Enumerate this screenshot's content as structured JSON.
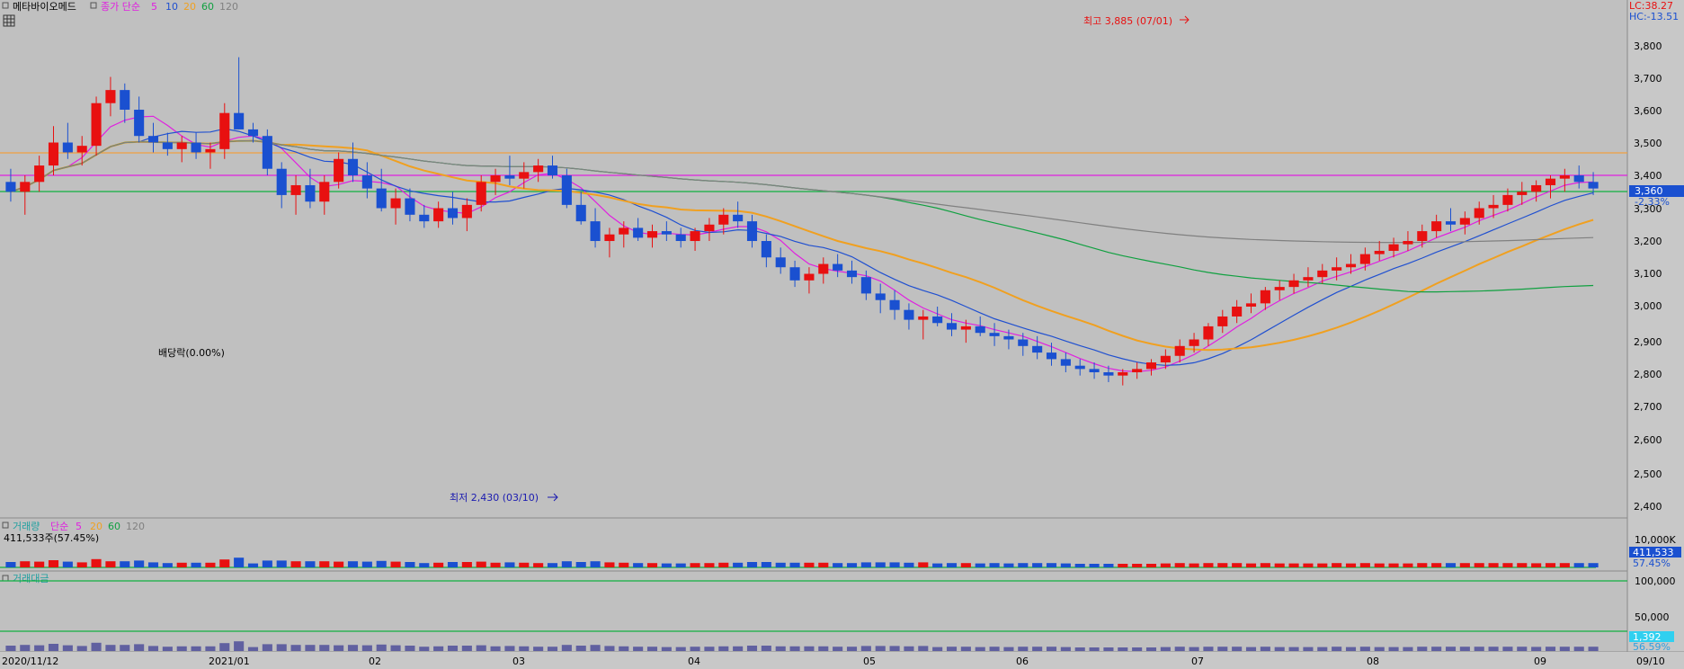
{
  "header": {
    "stock_name": "메타바이오메드",
    "price_ma_label": "종가 단순",
    "ma_periods": [
      "5",
      "10",
      "20",
      "60",
      "120"
    ],
    "ma_colors": [
      "#e020e0",
      "#2050d0",
      "#f0a020",
      "#10a040",
      "#808080"
    ],
    "lc_text": "LC:38.27",
    "hc_text": "HC:-13.51"
  },
  "annotations": {
    "high_label": "최고 3,885 (07/01)",
    "low_label": "최저 2,430 (03/10)",
    "dividend_label": "배당락(0.00%)"
  },
  "price_panel": {
    "current_price": "3,360",
    "change_pct": "-2.33%",
    "y_ticks": [
      "3,800",
      "3,700",
      "3,600",
      "3,500",
      "3,400",
      "3,300",
      "3,200",
      "3,100",
      "3,000",
      "2,900",
      "2,800",
      "2,700",
      "2,600",
      "2,500",
      "2,400"
    ]
  },
  "volume_panel": {
    "label": "거래량",
    "ma_label": "단순",
    "ma_periods": [
      "5",
      "20",
      "60",
      "120"
    ],
    "info": "411,533주(57.45%)",
    "y_tick": "10,000K",
    "current": "411,533",
    "pct": "57.45%"
  },
  "amount_panel": {
    "label": "거래대금",
    "y_ticks": [
      "100,000",
      "50,000"
    ],
    "current": "1,392",
    "pct": "56.59%"
  },
  "x_axis": {
    "labels": [
      "2020/11/12",
      "2021/01",
      "02",
      "03",
      "04",
      "05",
      "06",
      "07",
      "08",
      "09",
      "09/10"
    ]
  },
  "colors": {
    "up": "#e81010",
    "down": "#1a50d0",
    "background": "#c0c0c0",
    "resistance_line": "#f0a040",
    "magenta_line": "#e020e0",
    "green_line": "#10b040"
  },
  "chart_data": {
    "type": "candlestick",
    "ylim": [
      2400,
      3885
    ],
    "candles": [
      [
        3380,
        3420,
        3320,
        3350
      ],
      [
        3350,
        3400,
        3280,
        3380
      ],
      [
        3380,
        3460,
        3350,
        3430
      ],
      [
        3430,
        3550,
        3400,
        3500
      ],
      [
        3500,
        3560,
        3450,
        3470
      ],
      [
        3470,
        3520,
        3430,
        3490
      ],
      [
        3490,
        3640,
        3460,
        3620
      ],
      [
        3620,
        3700,
        3580,
        3660
      ],
      [
        3660,
        3680,
        3560,
        3600
      ],
      [
        3600,
        3640,
        3500,
        3520
      ],
      [
        3520,
        3560,
        3470,
        3500
      ],
      [
        3500,
        3530,
        3460,
        3480
      ],
      [
        3480,
        3520,
        3440,
        3500
      ],
      [
        3500,
        3530,
        3450,
        3470
      ],
      [
        3470,
        3500,
        3420,
        3480
      ],
      [
        3480,
        3620,
        3450,
        3590
      ],
      [
        3590,
        3760,
        3540,
        3540
      ],
      [
        3540,
        3560,
        3500,
        3520
      ],
      [
        3520,
        3540,
        3400,
        3420
      ],
      [
        3420,
        3440,
        3300,
        3340
      ],
      [
        3340,
        3400,
        3280,
        3370
      ],
      [
        3370,
        3420,
        3300,
        3320
      ],
      [
        3320,
        3400,
        3280,
        3380
      ],
      [
        3380,
        3470,
        3360,
        3450
      ],
      [
        3450,
        3500,
        3380,
        3400
      ],
      [
        3400,
        3440,
        3330,
        3360
      ],
      [
        3360,
        3420,
        3290,
        3300
      ],
      [
        3300,
        3360,
        3250,
        3330
      ],
      [
        3330,
        3360,
        3260,
        3280
      ],
      [
        3280,
        3310,
        3240,
        3260
      ],
      [
        3260,
        3320,
        3240,
        3300
      ],
      [
        3300,
        3350,
        3250,
        3270
      ],
      [
        3270,
        3330,
        3230,
        3310
      ],
      [
        3310,
        3400,
        3290,
        3380
      ],
      [
        3380,
        3420,
        3340,
        3400
      ],
      [
        3400,
        3460,
        3370,
        3390
      ],
      [
        3390,
        3440,
        3360,
        3410
      ],
      [
        3410,
        3450,
        3380,
        3430
      ],
      [
        3430,
        3460,
        3390,
        3400
      ],
      [
        3400,
        3420,
        3300,
        3310
      ],
      [
        3310,
        3350,
        3250,
        3260
      ],
      [
        3260,
        3300,
        3180,
        3200
      ],
      [
        3200,
        3240,
        3150,
        3220
      ],
      [
        3220,
        3260,
        3180,
        3240
      ],
      [
        3240,
        3270,
        3200,
        3210
      ],
      [
        3210,
        3250,
        3180,
        3230
      ],
      [
        3230,
        3260,
        3200,
        3220
      ],
      [
        3220,
        3240,
        3180,
        3200
      ],
      [
        3200,
        3240,
        3170,
        3230
      ],
      [
        3230,
        3270,
        3200,
        3250
      ],
      [
        3250,
        3300,
        3220,
        3280
      ],
      [
        3280,
        3320,
        3240,
        3260
      ],
      [
        3260,
        3280,
        3180,
        3200
      ],
      [
        3200,
        3220,
        3120,
        3150
      ],
      [
        3150,
        3180,
        3100,
        3120
      ],
      [
        3120,
        3140,
        3060,
        3080
      ],
      [
        3080,
        3120,
        3040,
        3100
      ],
      [
        3100,
        3150,
        3070,
        3130
      ],
      [
        3130,
        3160,
        3090,
        3110
      ],
      [
        3110,
        3140,
        3070,
        3090
      ],
      [
        3090,
        3110,
        3020,
        3040
      ],
      [
        3040,
        3070,
        2980,
        3020
      ],
      [
        3020,
        3050,
        2960,
        2990
      ],
      [
        2990,
        3010,
        2930,
        2960
      ],
      [
        2960,
        2990,
        2900,
        2970
      ],
      [
        2970,
        3000,
        2940,
        2950
      ],
      [
        2950,
        2980,
        2910,
        2930
      ],
      [
        2930,
        2960,
        2890,
        2940
      ],
      [
        2940,
        2970,
        2910,
        2920
      ],
      [
        2920,
        2950,
        2880,
        2910
      ],
      [
        2910,
        2930,
        2870,
        2900
      ],
      [
        2900,
        2920,
        2850,
        2880
      ],
      [
        2880,
        2910,
        2840,
        2860
      ],
      [
        2860,
        2890,
        2820,
        2840
      ],
      [
        2840,
        2860,
        2800,
        2820
      ],
      [
        2820,
        2840,
        2790,
        2810
      ],
      [
        2810,
        2830,
        2780,
        2800
      ],
      [
        2800,
        2820,
        2770,
        2790
      ],
      [
        2790,
        2810,
        2760,
        2800
      ],
      [
        2800,
        2830,
        2780,
        2810
      ],
      [
        2810,
        2840,
        2790,
        2830
      ],
      [
        2830,
        2870,
        2810,
        2850
      ],
      [
        2850,
        2900,
        2830,
        2880
      ],
      [
        2880,
        2920,
        2860,
        2900
      ],
      [
        2900,
        2950,
        2880,
        2940
      ],
      [
        2940,
        2990,
        2920,
        2970
      ],
      [
        2970,
        3020,
        2950,
        3000
      ],
      [
        3000,
        3040,
        2980,
        3010
      ],
      [
        3010,
        3060,
        2990,
        3050
      ],
      [
        3050,
        3080,
        3020,
        3060
      ],
      [
        3060,
        3100,
        3040,
        3080
      ],
      [
        3080,
        3120,
        3060,
        3090
      ],
      [
        3090,
        3130,
        3070,
        3110
      ],
      [
        3110,
        3150,
        3080,
        3120
      ],
      [
        3120,
        3160,
        3100,
        3130
      ],
      [
        3130,
        3180,
        3110,
        3160
      ],
      [
        3160,
        3200,
        3140,
        3170
      ],
      [
        3170,
        3210,
        3150,
        3190
      ],
      [
        3190,
        3230,
        3170,
        3200
      ],
      [
        3200,
        3250,
        3180,
        3230
      ],
      [
        3230,
        3280,
        3210,
        3260
      ],
      [
        3260,
        3300,
        3230,
        3250
      ],
      [
        3250,
        3290,
        3220,
        3270
      ],
      [
        3270,
        3320,
        3250,
        3300
      ],
      [
        3300,
        3340,
        3270,
        3310
      ],
      [
        3310,
        3360,
        3290,
        3340
      ],
      [
        3340,
        3380,
        3310,
        3350
      ],
      [
        3350,
        3385,
        3320,
        3370
      ],
      [
        3370,
        3400,
        3330,
        3390
      ],
      [
        3390,
        3420,
        3350,
        3400
      ],
      [
        3400,
        3430,
        3360,
        3380
      ],
      [
        3380,
        3410,
        3340,
        3360
      ]
    ]
  }
}
